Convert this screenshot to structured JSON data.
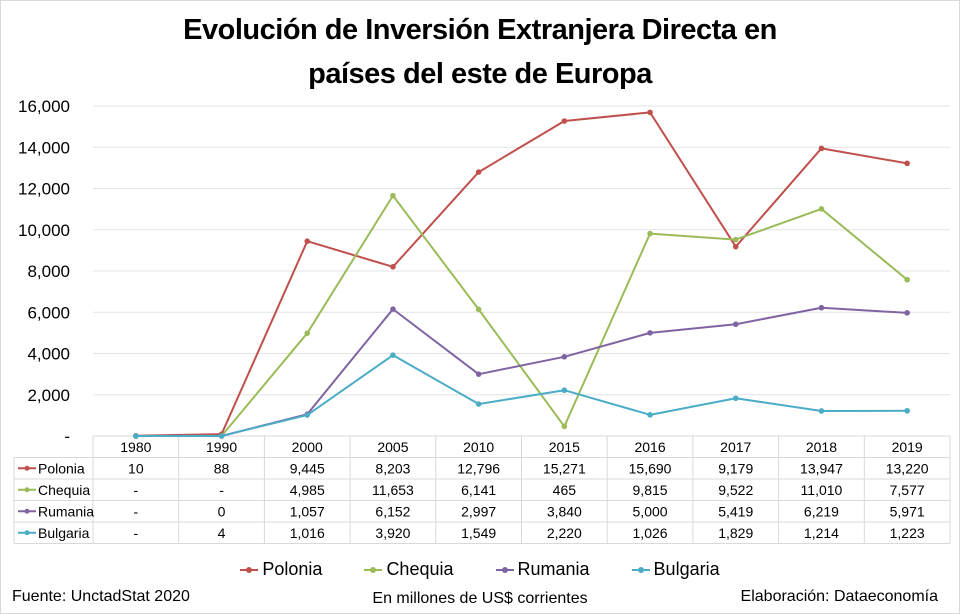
{
  "chart_data": {
    "type": "line",
    "title": "Evolución de Inversión Extranjera Directa en países del este de Europa",
    "title_lines": [
      "Evolución de Inversión Extranjera Directa en",
      "países del este de Europa"
    ],
    "xlabel": "",
    "ylabel": "",
    "categories": [
      "1980",
      "1990",
      "2000",
      "2005",
      "2010",
      "2015",
      "2016",
      "2017",
      "2018",
      "2019"
    ],
    "ylim": [
      0,
      16000
    ],
    "yticks": [
      0,
      2000,
      4000,
      6000,
      8000,
      10000,
      12000,
      14000,
      16000
    ],
    "ytick_labels": [
      "-",
      "2,000",
      "4,000",
      "6,000",
      "8,000",
      "10,000",
      "12,000",
      "14,000",
      "16,000"
    ],
    "grid": true,
    "legend_position": "bottom",
    "series": [
      {
        "name": "Polonia",
        "color": "#c0504d",
        "values": [
          10,
          88,
          9445,
          8203,
          12796,
          15271,
          15690,
          9179,
          13947,
          13220
        ],
        "labels": [
          "10",
          "88",
          "9,445",
          "8,203",
          "12,796",
          "15,271",
          "15,690",
          "9,179",
          "13,947",
          "13,220"
        ]
      },
      {
        "name": "Chequia",
        "color": "#9bbb59",
        "values": [
          null,
          null,
          4985,
          11653,
          6141,
          465,
          9815,
          9522,
          11010,
          7577
        ],
        "plot_values": [
          0,
          0,
          4985,
          11653,
          6141,
          465,
          9815,
          9522,
          11010,
          7577
        ],
        "labels": [
          "-",
          "-",
          "4,985",
          "11,653",
          "6,141",
          "465",
          "9,815",
          "9,522",
          "11,010",
          "7,577"
        ]
      },
      {
        "name": "Rumania",
        "color": "#8064a2",
        "values": [
          null,
          0,
          1057,
          6152,
          2997,
          3840,
          5000,
          5419,
          6219,
          5971
        ],
        "plot_values": [
          0,
          0,
          1057,
          6152,
          2997,
          3840,
          5000,
          5419,
          6219,
          5971
        ],
        "labels": [
          "-",
          "0",
          "1,057",
          "6,152",
          "2,997",
          "3,840",
          "5,000",
          "5,419",
          "6,219",
          "5,971"
        ]
      },
      {
        "name": "Bulgaria",
        "color": "#4bacc6",
        "values": [
          null,
          4,
          1016,
          3920,
          1549,
          2220,
          1026,
          1829,
          1214,
          1223
        ],
        "plot_values": [
          0,
          4,
          1016,
          3920,
          1549,
          2220,
          1026,
          1829,
          1214,
          1223
        ],
        "labels": [
          "-",
          "4",
          "1,016",
          "3,920",
          "1,549",
          "2,220",
          "1,026",
          "1,829",
          "1,214",
          "1,223"
        ]
      }
    ],
    "data_table": true
  },
  "footer": {
    "source": "Fuente: UnctadStat 2020",
    "units": "En millones de US$ corrientes",
    "credit": "Elaboración: Dataeconomía"
  }
}
